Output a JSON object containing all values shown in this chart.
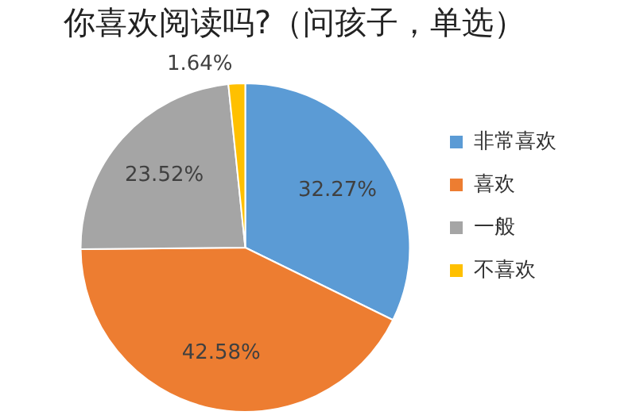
{
  "chart_data": {
    "type": "pie",
    "title": "你喜欢阅读吗?（问孩子，单选）",
    "categories": [
      "非常喜欢",
      "喜欢",
      "一般",
      "不喜欢"
    ],
    "values": [
      32.27,
      42.58,
      23.52,
      1.64
    ],
    "colors": [
      "#5b9bd5",
      "#ed7d31",
      "#a5a5a5",
      "#ffc000"
    ],
    "value_labels": [
      "32.27%",
      "42.58%",
      "23.52%",
      "1.64%"
    ],
    "legend": "right"
  }
}
